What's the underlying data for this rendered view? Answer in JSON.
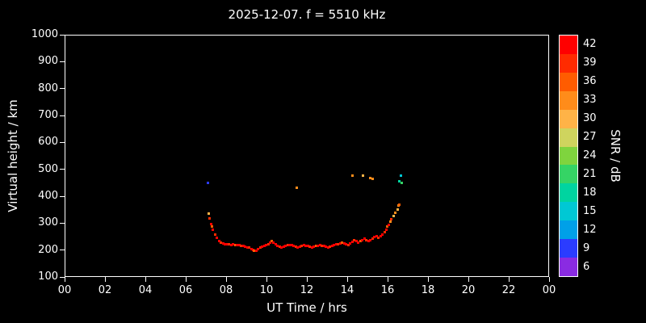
{
  "chart_data": {
    "type": "scatter",
    "title": "2025-12-07. f = 5510 kHz",
    "xlabel": "UT Time / hrs",
    "ylabel": "Virtual height / km",
    "x_range": [
      0,
      24
    ],
    "y_range": [
      100,
      1000
    ],
    "x_tick_values": [
      0,
      2,
      4,
      6,
      8,
      10,
      12,
      14,
      16,
      18,
      20,
      22,
      24
    ],
    "x_tick_labels": [
      "00",
      "02",
      "04",
      "06",
      "08",
      "10",
      "12",
      "14",
      "16",
      "18",
      "20",
      "22",
      "00"
    ],
    "y_tick_values": [
      100,
      200,
      300,
      400,
      500,
      600,
      700,
      800,
      900,
      1000
    ],
    "grid": false,
    "background": "#000000",
    "point_note": "points are [UT_hours, virtual_height_km, SNR_dB]",
    "points": [
      [
        7.05,
        452,
        9
      ],
      [
        7.1,
        338,
        30
      ],
      [
        7.15,
        320,
        39
      ],
      [
        7.2,
        300,
        42
      ],
      [
        7.25,
        290,
        36
      ],
      [
        7.3,
        278,
        42
      ],
      [
        7.4,
        262,
        39
      ],
      [
        7.5,
        248,
        42
      ],
      [
        7.6,
        238,
        42
      ],
      [
        7.7,
        232,
        39
      ],
      [
        7.8,
        228,
        42
      ],
      [
        7.9,
        226,
        42
      ],
      [
        8.0,
        225,
        42
      ],
      [
        8.1,
        224,
        39
      ],
      [
        8.2,
        223,
        42
      ],
      [
        8.3,
        224,
        42
      ],
      [
        8.4,
        222,
        36
      ],
      [
        8.5,
        221,
        42
      ],
      [
        8.6,
        222,
        42
      ],
      [
        8.7,
        220,
        39
      ],
      [
        8.8,
        218,
        42
      ],
      [
        8.9,
        216,
        42
      ],
      [
        9.0,
        214,
        42
      ],
      [
        9.1,
        212,
        39
      ],
      [
        9.2,
        208,
        42
      ],
      [
        9.3,
        204,
        42
      ],
      [
        9.35,
        200,
        36
      ],
      [
        9.45,
        202,
        42
      ],
      [
        9.55,
        206,
        42
      ],
      [
        9.65,
        212,
        39
      ],
      [
        9.75,
        216,
        42
      ],
      [
        9.85,
        220,
        42
      ],
      [
        9.95,
        222,
        42
      ],
      [
        10.05,
        226,
        39
      ],
      [
        10.15,
        232,
        42
      ],
      [
        10.2,
        236,
        36
      ],
      [
        10.3,
        230,
        42
      ],
      [
        10.4,
        224,
        42
      ],
      [
        10.5,
        219,
        42
      ],
      [
        10.6,
        216,
        39
      ],
      [
        10.7,
        214,
        42
      ],
      [
        10.8,
        216,
        42
      ],
      [
        10.9,
        218,
        42
      ],
      [
        11.0,
        221,
        39
      ],
      [
        11.1,
        223,
        42
      ],
      [
        11.2,
        221,
        42
      ],
      [
        11.3,
        218,
        42
      ],
      [
        11.4,
        215,
        39
      ],
      [
        11.45,
        435,
        33
      ],
      [
        11.5,
        214,
        42
      ],
      [
        11.6,
        216,
        42
      ],
      [
        11.7,
        219,
        39
      ],
      [
        11.8,
        222,
        42
      ],
      [
        11.9,
        220,
        42
      ],
      [
        12.0,
        218,
        42
      ],
      [
        12.1,
        215,
        39
      ],
      [
        12.2,
        214,
        42
      ],
      [
        12.3,
        215,
        42
      ],
      [
        12.4,
        218,
        36
      ],
      [
        12.5,
        220,
        42
      ],
      [
        12.6,
        222,
        42
      ],
      [
        12.7,
        220,
        39
      ],
      [
        12.8,
        218,
        42
      ],
      [
        12.9,
        215,
        42
      ],
      [
        13.0,
        214,
        42
      ],
      [
        13.1,
        216,
        39
      ],
      [
        13.2,
        218,
        42
      ],
      [
        13.3,
        221,
        42
      ],
      [
        13.4,
        224,
        42
      ],
      [
        13.5,
        226,
        39
      ],
      [
        13.6,
        229,
        42
      ],
      [
        13.7,
        232,
        36
      ],
      [
        13.8,
        228,
        42
      ],
      [
        13.9,
        225,
        42
      ],
      [
        14.0,
        223,
        39
      ],
      [
        14.1,
        228,
        42
      ],
      [
        14.2,
        481,
        33
      ],
      [
        14.2,
        235,
        42
      ],
      [
        14.3,
        241,
        39
      ],
      [
        14.4,
        236,
        42
      ],
      [
        14.5,
        231,
        42
      ],
      [
        14.6,
        236,
        36
      ],
      [
        14.7,
        241,
        42
      ],
      [
        14.75,
        480,
        30
      ],
      [
        14.8,
        246,
        42
      ],
      [
        14.9,
        241,
        39
      ],
      [
        15.0,
        236,
        42
      ],
      [
        15.1,
        470,
        33
      ],
      [
        15.1,
        241,
        42
      ],
      [
        15.2,
        468,
        33
      ],
      [
        15.2,
        246,
        39
      ],
      [
        15.3,
        251,
        42
      ],
      [
        15.4,
        255,
        42
      ],
      [
        15.5,
        250,
        39
      ],
      [
        15.6,
        255,
        42
      ],
      [
        15.7,
        261,
        42
      ],
      [
        15.8,
        270,
        39
      ],
      [
        15.9,
        280,
        42
      ],
      [
        15.95,
        290,
        36
      ],
      [
        16.0,
        296,
        42
      ],
      [
        16.1,
        308,
        33
      ],
      [
        16.15,
        318,
        39
      ],
      [
        16.25,
        330,
        30
      ],
      [
        16.35,
        342,
        33
      ],
      [
        16.45,
        355,
        30
      ],
      [
        16.5,
        368,
        33
      ],
      [
        16.55,
        372,
        36
      ],
      [
        16.55,
        458,
        18
      ],
      [
        16.6,
        480,
        15
      ],
      [
        16.65,
        452,
        21
      ]
    ]
  },
  "colorbar": {
    "label": "SNR / dB",
    "tick_values": [
      42,
      39,
      36,
      33,
      30,
      27,
      24,
      21,
      18,
      15,
      12,
      9,
      6
    ],
    "bands": [
      {
        "value": 42,
        "color": "#ff0000"
      },
      {
        "value": 39,
        "color": "#ff2b00"
      },
      {
        "value": 36,
        "color": "#ff5c00"
      },
      {
        "value": 33,
        "color": "#ff8c1a"
      },
      {
        "value": 30,
        "color": "#ffb347"
      },
      {
        "value": 27,
        "color": "#cfd45e"
      },
      {
        "value": 24,
        "color": "#7fd43e"
      },
      {
        "value": 21,
        "color": "#35d465"
      },
      {
        "value": 18,
        "color": "#00d4a0"
      },
      {
        "value": 15,
        "color": "#00c8d4"
      },
      {
        "value": 12,
        "color": "#00a0e8"
      },
      {
        "value": 9,
        "color": "#2b3cff"
      },
      {
        "value": 6,
        "color": "#8a2be2"
      }
    ]
  },
  "colors": {
    "background": "#000000",
    "foreground": "#ffffff"
  }
}
